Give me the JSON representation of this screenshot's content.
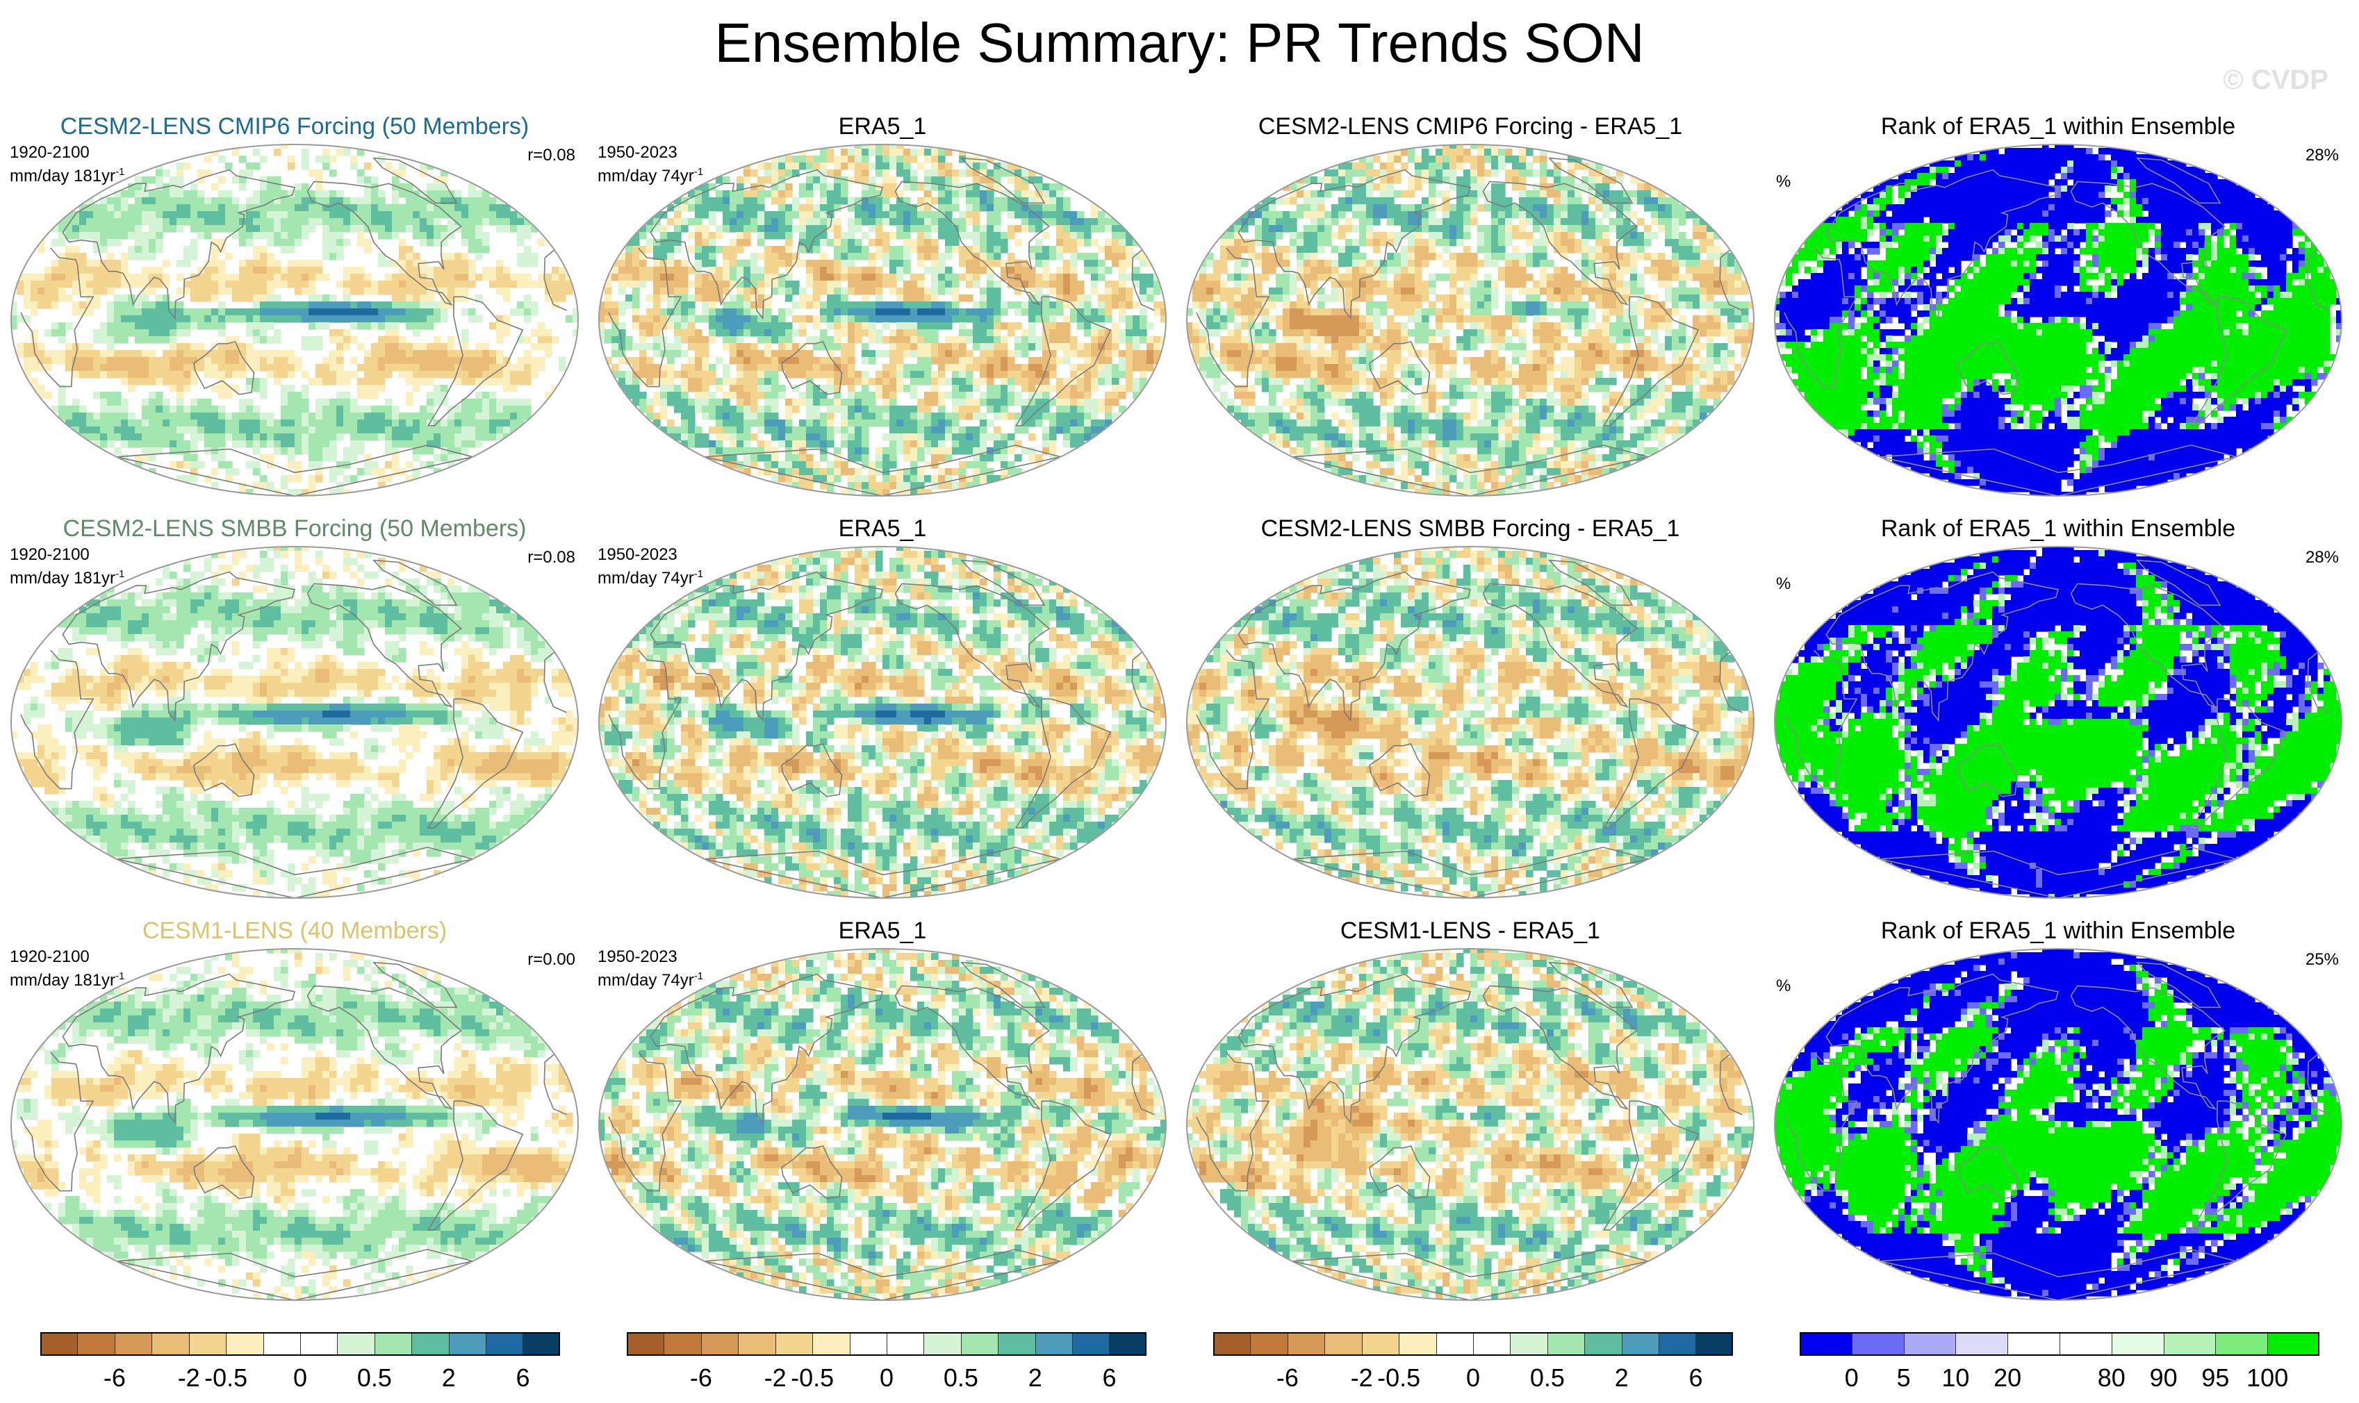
{
  "title": "Ensemble Summary: PR Trends SON",
  "watermark": "© CVDP",
  "colors": {
    "title_cesm2_cmip6": "#1b6c8e",
    "title_cesm2_smbb": "#5f8a6a",
    "title_cesm1": "#d9c36b",
    "coast": "#7a7a7a",
    "frame": "#9a9a9a"
  },
  "rows": [
    {
      "model": {
        "title": "CESM2-LENS CMIP6 Forcing (50 Members)",
        "years": "1920-2100",
        "units": "mm/day 181yr",
        "units_sup": "-1",
        "r": "r=0.08"
      },
      "obs": {
        "title": "ERA5_1",
        "years": "1950-2023",
        "units": "mm/day 74yr",
        "units_sup": "-1"
      },
      "diff": {
        "title": "CESM2-LENS CMIP6 Forcing - ERA5_1"
      },
      "rank": {
        "title": "Rank of ERA5_1 within Ensemble",
        "unit": "%",
        "pct": "28%"
      }
    },
    {
      "model": {
        "title": "CESM2-LENS SMBB Forcing (50 Members)",
        "years": "1920-2100",
        "units": "mm/day 181yr",
        "units_sup": "-1",
        "r": "r=0.08"
      },
      "obs": {
        "title": "ERA5_1",
        "years": "1950-2023",
        "units": "mm/day 74yr",
        "units_sup": "-1"
      },
      "diff": {
        "title": "CESM2-LENS SMBB Forcing - ERA5_1"
      },
      "rank": {
        "title": "Rank of ERA5_1 within Ensemble",
        "unit": "%",
        "pct": "28%"
      }
    },
    {
      "model": {
        "title": "CESM1-LENS (40 Members)",
        "years": "1920-2100",
        "units": "mm/day 181yr",
        "units_sup": "-1",
        "r": "r=0.00"
      },
      "obs": {
        "title": "ERA5_1",
        "years": "1950-2023",
        "units": "mm/day 74yr",
        "units_sup": "-1"
      },
      "diff": {
        "title": "CESM1-LENS - ERA5_1"
      },
      "rank": {
        "title": "Rank of ERA5_1 within Ensemble",
        "unit": "%",
        "pct": "25%"
      }
    }
  ],
  "chart_data": {
    "type": "heatmap",
    "title": "Ensemble Summary: PR Trends SON",
    "projection": "global ellipse (Robinson-like), Pacific-centered",
    "trend_colorbar": {
      "colors": [
        "#a4602a",
        "#c07a3a",
        "#d59a58",
        "#e9bd78",
        "#f3d58f",
        "#fcefbe",
        "#ffffff",
        "#ffffff",
        "#d5f4d5",
        "#a3e6b0",
        "#5fbe9f",
        "#4d9cbc",
        "#1f6aa1",
        "#073e66"
      ],
      "tick_labels": [
        "-6",
        "-2",
        "-0.5",
        "0",
        "0.5",
        "2",
        "6"
      ],
      "tick_boundaries": [
        2,
        4,
        5,
        7,
        9,
        11,
        13
      ]
    },
    "rank_colorbar": {
      "colors": [
        "#0000ee",
        "#6b6bf5",
        "#aaaaf7",
        "#dcdcfa",
        "#ffffff",
        "#ffffff",
        "#e4fbe4",
        "#b7f3b7",
        "#7ced7c",
        "#00ee00"
      ],
      "tick_labels": [
        "0",
        "5",
        "10",
        "20",
        "80",
        "90",
        "95",
        "100"
      ],
      "tick_boundaries": [
        1,
        2,
        3,
        4,
        6,
        7,
        8,
        9
      ]
    },
    "panels": [
      {
        "row": 0,
        "col": 0,
        "field": "trend",
        "seed": 11,
        "summary": "Pacific ITCZ and Maritime Continent wetting; subtropical drying",
        "r": 0.08
      },
      {
        "row": 0,
        "col": 1,
        "field": "trend",
        "seed": 23,
        "summary": "Strong equatorial Pacific wetting band; patchy drying"
      },
      {
        "row": 0,
        "col": 2,
        "field": "trend",
        "seed": 37,
        "summary": "Drier than ERA5 along equatorial Pacific"
      },
      {
        "row": 0,
        "col": 3,
        "field": "rank",
        "seed": 41,
        "pct_value": 28
      },
      {
        "row": 1,
        "col": 0,
        "field": "trend",
        "seed": 53,
        "summary": "Similar to CMIP6 forcing pattern",
        "r": 0.08
      },
      {
        "row": 1,
        "col": 1,
        "field": "trend",
        "seed": 67,
        "summary": "Strong equatorial Pacific wetting band"
      },
      {
        "row": 1,
        "col": 2,
        "field": "trend",
        "seed": 71,
        "summary": "Drier than ERA5 along equatorial Pacific"
      },
      {
        "row": 1,
        "col": 3,
        "field": "rank",
        "seed": 83,
        "pct_value": 28
      },
      {
        "row": 2,
        "col": 0,
        "field": "trend",
        "seed": 97,
        "summary": "Weak equatorial wetting; Indian Ocean drying",
        "r": 0.0
      },
      {
        "row": 2,
        "col": 1,
        "field": "trend",
        "seed": 103,
        "summary": "Strong equatorial Pacific wetting band"
      },
      {
        "row": 2,
        "col": 2,
        "field": "trend",
        "seed": 113,
        "summary": "Widespread drying relative to ERA5"
      },
      {
        "row": 2,
        "col": 3,
        "field": "rank",
        "seed": 127,
        "pct_value": 25
      }
    ]
  }
}
